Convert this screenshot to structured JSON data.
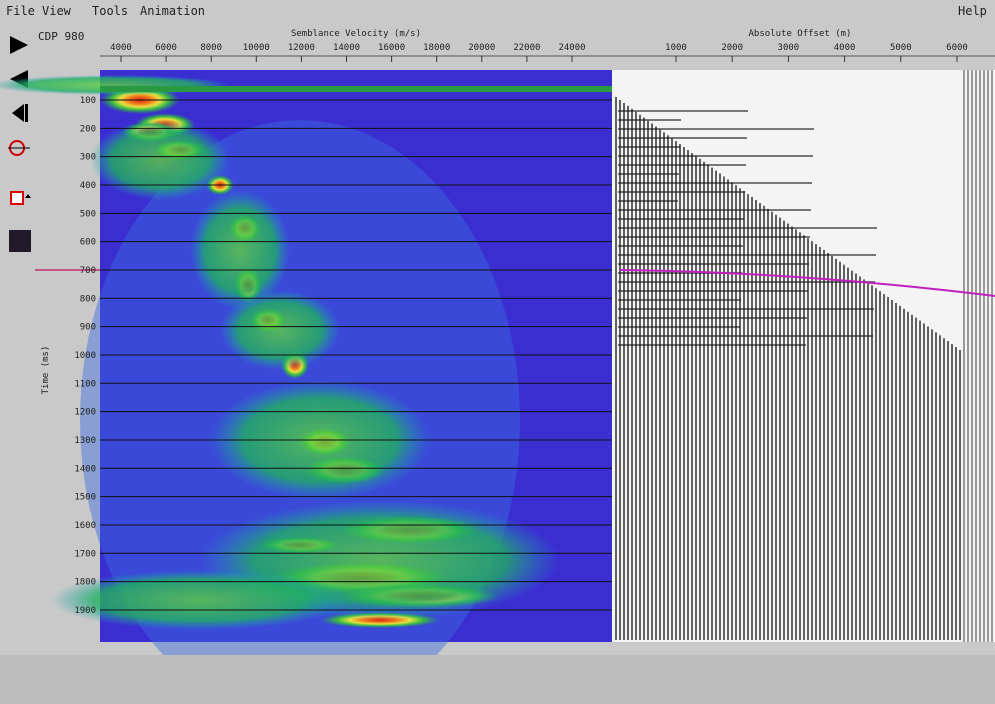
{
  "menu": {
    "items": [
      "File",
      "View",
      "Tools",
      "Animation"
    ],
    "help": "Help"
  },
  "toolbar": {
    "cdp_label": "CDP 980"
  },
  "semblance": {
    "axis_title": "Semblance Velocity (m/s)",
    "ticks": [
      4000,
      6000,
      8000,
      10000,
      12000,
      14000,
      16000,
      18000,
      20000,
      22000,
      24000
    ]
  },
  "gather": {
    "axis_title": "Absolute Offset (m)",
    "ticks": [
      1000,
      2000,
      3000,
      4000,
      5000,
      6000
    ]
  },
  "time_axis": {
    "title": "Time (ms)",
    "ticks": [
      100,
      200,
      300,
      400,
      500,
      600,
      700,
      800,
      900,
      1000,
      1100,
      1200,
      1300,
      1400,
      1500,
      1600,
      1700,
      1800,
      1900
    ]
  }
}
